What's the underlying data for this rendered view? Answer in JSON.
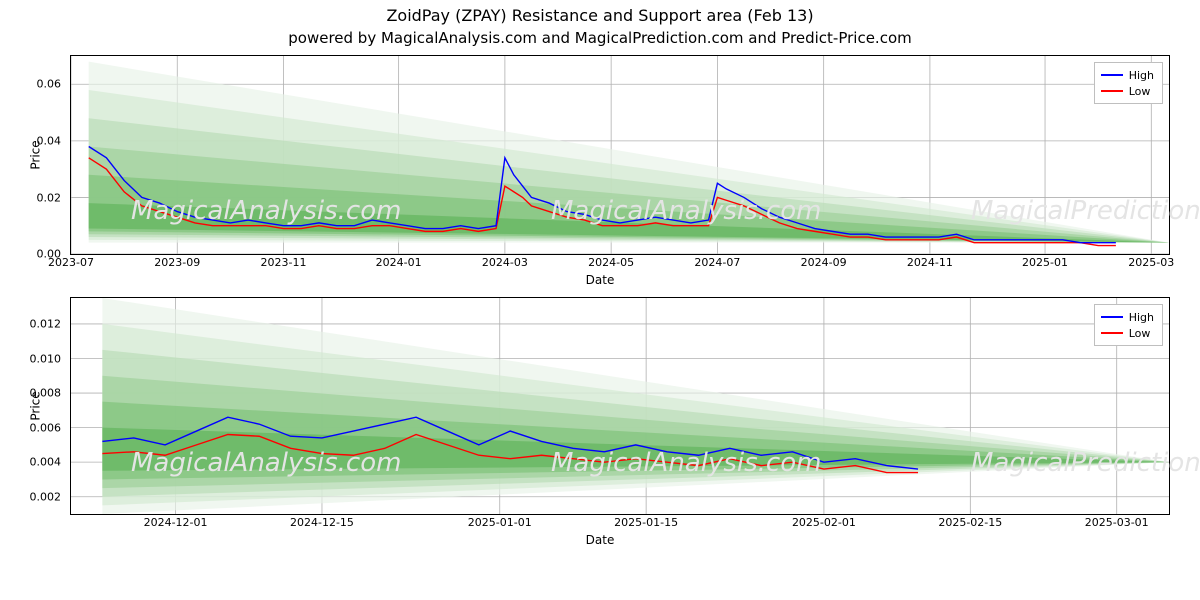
{
  "titles": {
    "main": "ZoidPay (ZPAY) Resistance and Support area (Feb 13)",
    "sub": "powered by MagicalAnalysis.com and MagicalPrediction.com and Predict-Price.com"
  },
  "watermark_texts": [
    "MagicalAnalysis.com",
    "MagicalPrediction.com"
  ],
  "legend": {
    "items": [
      {
        "label": "High",
        "color": "#0000ff"
      },
      {
        "label": "Low",
        "color": "#ff0000"
      }
    ]
  },
  "styling": {
    "background_color": "#ffffff",
    "grid_color": "#b0b0b0",
    "axis_color": "#000000",
    "tick_fontsize": 11,
    "label_fontsize": 12,
    "title_fontsize": 16,
    "subtitle_fontsize": 15,
    "line_width": 1.4,
    "fan_colors": [
      "#e8f3e8",
      "#d3e9d1",
      "#b8dcb5",
      "#9ccf98",
      "#7cc178",
      "#5fb45a"
    ],
    "fan_opacity": 0.65
  },
  "top_chart": {
    "type": "line-with-fan",
    "ylabel": "Price",
    "xlabel": "Date",
    "ylim": [
      0,
      0.07
    ],
    "yticks": [
      0.0,
      0.02,
      0.04,
      0.06
    ],
    "ytick_labels": [
      "0.00",
      "0.02",
      "0.04",
      "0.06"
    ],
    "x_range_days": [
      0,
      620
    ],
    "xticks_days": [
      0,
      60,
      120,
      185,
      245,
      305,
      365,
      425,
      485,
      550,
      610
    ],
    "xtick_labels": [
      "2023-07",
      "2023-09",
      "2023-11",
      "2024-01",
      "2024-03",
      "2024-05",
      "2024-07",
      "2024-09",
      "2024-11",
      "2025-01",
      "2025-03"
    ],
    "fan": {
      "apex_day": 620,
      "apex_value": 0.004,
      "origin_day": 10,
      "tops": [
        0.068,
        0.058,
        0.048,
        0.038,
        0.028,
        0.018
      ],
      "bottoms": [
        0.004,
        0.005,
        0.006,
        0.007,
        0.008,
        0.009
      ]
    },
    "series": {
      "days": [
        10,
        20,
        30,
        40,
        50,
        60,
        70,
        80,
        90,
        100,
        110,
        120,
        130,
        140,
        150,
        160,
        170,
        180,
        190,
        200,
        210,
        220,
        230,
        240,
        245,
        250,
        255,
        260,
        270,
        280,
        290,
        300,
        310,
        320,
        330,
        340,
        350,
        360,
        365,
        370,
        380,
        390,
        400,
        410,
        420,
        430,
        440,
        450,
        460,
        470,
        480,
        490,
        500,
        510,
        520,
        530,
        540,
        550,
        560,
        570,
        580,
        590
      ],
      "high": [
        0.038,
        0.034,
        0.026,
        0.02,
        0.018,
        0.015,
        0.013,
        0.012,
        0.011,
        0.012,
        0.011,
        0.01,
        0.01,
        0.011,
        0.01,
        0.01,
        0.012,
        0.011,
        0.01,
        0.009,
        0.009,
        0.01,
        0.009,
        0.01,
        0.034,
        0.028,
        0.024,
        0.02,
        0.018,
        0.015,
        0.014,
        0.012,
        0.011,
        0.012,
        0.013,
        0.012,
        0.011,
        0.012,
        0.025,
        0.023,
        0.02,
        0.016,
        0.013,
        0.011,
        0.009,
        0.008,
        0.007,
        0.007,
        0.006,
        0.006,
        0.006,
        0.006,
        0.007,
        0.005,
        0.005,
        0.005,
        0.005,
        0.005,
        0.005,
        0.004,
        0.004,
        0.004
      ],
      "low": [
        0.034,
        0.03,
        0.022,
        0.017,
        0.015,
        0.013,
        0.011,
        0.01,
        0.01,
        0.01,
        0.01,
        0.009,
        0.009,
        0.01,
        0.009,
        0.009,
        0.01,
        0.01,
        0.009,
        0.008,
        0.008,
        0.009,
        0.008,
        0.009,
        0.024,
        0.022,
        0.02,
        0.017,
        0.015,
        0.013,
        0.012,
        0.01,
        0.01,
        0.01,
        0.011,
        0.01,
        0.01,
        0.01,
        0.02,
        0.019,
        0.017,
        0.014,
        0.011,
        0.009,
        0.008,
        0.007,
        0.006,
        0.006,
        0.005,
        0.005,
        0.005,
        0.005,
        0.006,
        0.004,
        0.004,
        0.004,
        0.004,
        0.004,
        0.004,
        0.004,
        0.003,
        0.003
      ]
    }
  },
  "bottom_chart": {
    "type": "line-with-fan",
    "ylabel": "Price",
    "xlabel": "Date",
    "ylim": [
      0.001,
      0.0135
    ],
    "yticks": [
      0.002,
      0.004,
      0.006,
      0.008,
      0.01,
      0.012
    ],
    "ytick_labels": [
      "0.002",
      "0.004",
      "0.006",
      "0.008",
      "0.010",
      "0.012"
    ],
    "x_range_days": [
      0,
      105
    ],
    "xticks_days": [
      10,
      24,
      41,
      55,
      72,
      86,
      100
    ],
    "xtick_labels": [
      "2024-12-01",
      "2024-12-15",
      "2025-01-01",
      "2025-01-15",
      "2025-02-01",
      "2025-02-15",
      "2025-03-01"
    ],
    "fan": {
      "apex_day": 105,
      "apex_value": 0.004,
      "origin_day": 3,
      "tops": [
        0.0135,
        0.012,
        0.0105,
        0.009,
        0.0075,
        0.006
      ],
      "bottoms": [
        0.001,
        0.0015,
        0.002,
        0.0025,
        0.003,
        0.0035
      ]
    },
    "series": {
      "days": [
        3,
        6,
        9,
        12,
        15,
        18,
        21,
        24,
        27,
        30,
        33,
        36,
        39,
        42,
        45,
        48,
        51,
        54,
        57,
        60,
        63,
        66,
        69,
        72,
        75,
        78,
        81
      ],
      "high": [
        0.0052,
        0.0054,
        0.005,
        0.0058,
        0.0066,
        0.0062,
        0.0055,
        0.0054,
        0.0058,
        0.0062,
        0.0066,
        0.0058,
        0.005,
        0.0058,
        0.0052,
        0.0048,
        0.0046,
        0.005,
        0.0046,
        0.0044,
        0.0048,
        0.0044,
        0.0046,
        0.004,
        0.0042,
        0.0038,
        0.0036
      ],
      "low": [
        0.0045,
        0.0046,
        0.0044,
        0.005,
        0.0056,
        0.0055,
        0.0048,
        0.0045,
        0.0044,
        0.0048,
        0.0056,
        0.005,
        0.0044,
        0.0042,
        0.0044,
        0.0042,
        0.004,
        0.0042,
        0.004,
        0.0038,
        0.0042,
        0.0038,
        0.004,
        0.0036,
        0.0038,
        0.0034,
        0.0034
      ]
    }
  }
}
